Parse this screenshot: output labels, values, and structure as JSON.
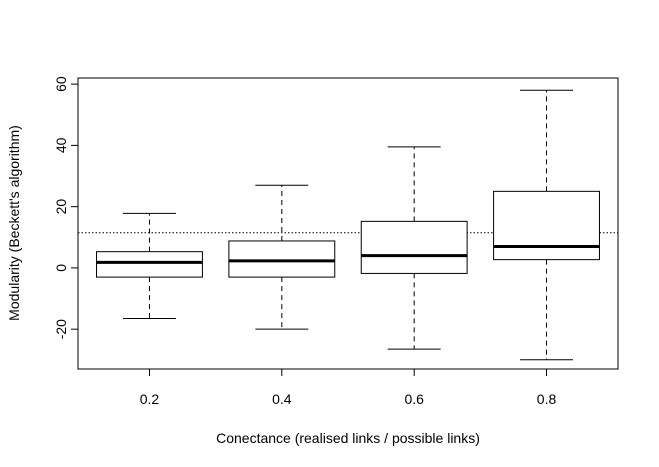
{
  "chart_data": {
    "type": "box",
    "xlabel": "Conectance (realised links / possible links)",
    "ylabel": "Modularity (Beckett's algorithm)",
    "ylim": [
      -33,
      62
    ],
    "yticks": [
      -20,
      0,
      20,
      40,
      60
    ],
    "reference_line": {
      "y": 11.5,
      "style": "dotted"
    },
    "groups": [
      {
        "label": "0.2",
        "min": -16.5,
        "q1": -3,
        "median": 1.8,
        "q3": 5.3,
        "max": 17.8
      },
      {
        "label": "0.4",
        "min": -20,
        "q1": -3,
        "median": 2.3,
        "q3": 8.8,
        "max": 27
      },
      {
        "label": "0.6",
        "min": -26.5,
        "q1": -1.8,
        "median": 4,
        "q3": 15.2,
        "max": 39.5
      },
      {
        "label": "0.8",
        "min": -30,
        "q1": 2.7,
        "median": 7,
        "q3": 25,
        "max": 58
      }
    ],
    "colors": {
      "box": "#000000",
      "median": "#000000",
      "background": "#ffffff"
    }
  }
}
